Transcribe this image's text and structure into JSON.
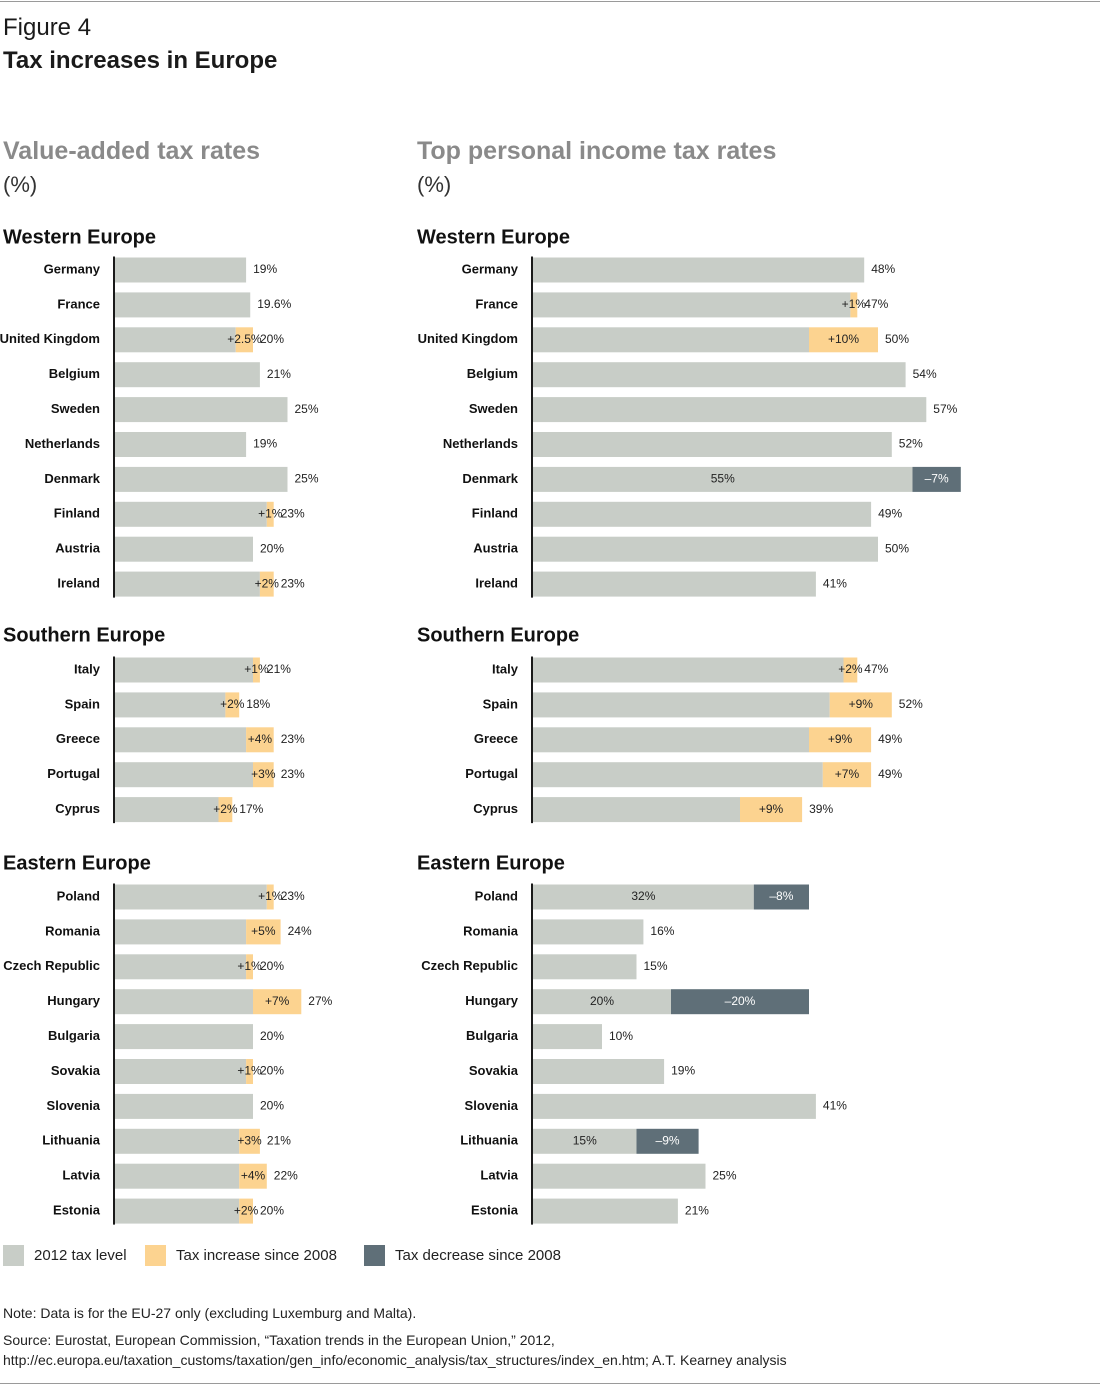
{
  "figure_label": "Figure 4",
  "figure_title": "Tax increases in Europe",
  "colors": {
    "level": "#c8cdc7",
    "increase": "#fcd390",
    "decrease": "#5f6f78",
    "axis": "#1a1a1a"
  },
  "legend": {
    "level": "2012 tax level",
    "increase": "Tax increase since 2008",
    "decrease": "Tax decrease since 2008"
  },
  "note": "Note: Data is for the EU-27 only (excluding Luxemburg and Malta).",
  "source_line1": "Source: Eurostat, European Commission, “Taxation trends in the European Union,” 2012,",
  "source_line2": "http://ec.europa.eu/taxation_customs/taxation/gen_info/economic_analysis/tax_structures/index_en.htm;  A.T. Kearney analysis",
  "chart_data": [
    {
      "type": "bar",
      "orientation": "horizontal",
      "stacked": true,
      "title": "Value-added tax rates",
      "unit": "(%)",
      "groups": [
        {
          "name": "Western Europe",
          "rows": [
            {
              "country": "Germany",
              "level": 19,
              "change": 0,
              "label": "19%",
              "change_label": ""
            },
            {
              "country": "France",
              "level": 19.6,
              "change": 0,
              "label": "19.6%",
              "change_label": ""
            },
            {
              "country": "United Kingdom",
              "level": 20,
              "change": 2.5,
              "label": "20%",
              "change_label": "+2.5%"
            },
            {
              "country": "Belgium",
              "level": 21,
              "change": 0,
              "label": "21%",
              "change_label": ""
            },
            {
              "country": "Sweden",
              "level": 25,
              "change": 0,
              "label": "25%",
              "change_label": ""
            },
            {
              "country": "Netherlands",
              "level": 19,
              "change": 0,
              "label": "19%",
              "change_label": ""
            },
            {
              "country": "Denmark",
              "level": 25,
              "change": 0,
              "label": "25%",
              "change_label": ""
            },
            {
              "country": "Finland",
              "level": 23,
              "change": 1,
              "label": "23%",
              "change_label": "+1%"
            },
            {
              "country": "Austria",
              "level": 20,
              "change": 0,
              "label": "20%",
              "change_label": ""
            },
            {
              "country": "Ireland",
              "level": 23,
              "change": 2,
              "label": "23%",
              "change_label": "+2%"
            }
          ]
        },
        {
          "name": "Southern Europe",
          "rows": [
            {
              "country": "Italy",
              "level": 21,
              "change": 1,
              "label": "21%",
              "change_label": "+1%"
            },
            {
              "country": "Spain",
              "level": 18,
              "change": 2,
              "label": "18%",
              "change_label": "+2%"
            },
            {
              "country": "Greece",
              "level": 23,
              "change": 4,
              "label": "23%",
              "change_label": "+4%"
            },
            {
              "country": "Portugal",
              "level": 23,
              "change": 3,
              "label": "23%",
              "change_label": "+3%"
            },
            {
              "country": "Cyprus",
              "level": 17,
              "change": 2,
              "label": "17%",
              "change_label": "+2%"
            }
          ]
        },
        {
          "name": "Eastern Europe",
          "rows": [
            {
              "country": "Poland",
              "level": 23,
              "change": 1,
              "label": "23%",
              "change_label": "+1%"
            },
            {
              "country": "Romania",
              "level": 24,
              "change": 5,
              "label": "24%",
              "change_label": "+5%"
            },
            {
              "country": "Czech Republic",
              "level": 20,
              "change": 1,
              "label": "20%",
              "change_label": "+1%"
            },
            {
              "country": "Hungary",
              "level": 27,
              "change": 7,
              "label": "27%",
              "change_label": "+7%"
            },
            {
              "country": "Bulgaria",
              "level": 20,
              "change": 0,
              "label": "20%",
              "change_label": ""
            },
            {
              "country": "Sovakia",
              "level": 20,
              "change": 1,
              "label": "20%",
              "change_label": "+1%"
            },
            {
              "country": "Slovenia",
              "level": 20,
              "change": 0,
              "label": "20%",
              "change_label": ""
            },
            {
              "country": "Lithuania",
              "level": 21,
              "change": 3,
              "label": "21%",
              "change_label": "+3%"
            },
            {
              "country": "Latvia",
              "level": 22,
              "change": 4,
              "label": "22%",
              "change_label": "+4%"
            },
            {
              "country": "Estonia",
              "level": 20,
              "change": 2,
              "label": "20%",
              "change_label": "+2%"
            }
          ]
        }
      ]
    },
    {
      "type": "bar",
      "orientation": "horizontal",
      "stacked": true,
      "title": "Top personal income tax rates",
      "unit": "(%)",
      "groups": [
        {
          "name": "Western Europe",
          "rows": [
            {
              "country": "Germany",
              "level": 48,
              "change": 0,
              "label": "48%",
              "change_label": ""
            },
            {
              "country": "France",
              "level": 47,
              "change": 1,
              "label": "47%",
              "change_label": "+1%"
            },
            {
              "country": "United Kingdom",
              "level": 50,
              "change": 10,
              "label": "50%",
              "change_label": "+10%"
            },
            {
              "country": "Belgium",
              "level": 54,
              "change": 0,
              "label": "54%",
              "change_label": ""
            },
            {
              "country": "Sweden",
              "level": 57,
              "change": 0,
              "label": "57%",
              "change_label": ""
            },
            {
              "country": "Netherlands",
              "level": 52,
              "change": 0,
              "label": "52%",
              "change_label": ""
            },
            {
              "country": "Denmark",
              "level": 55,
              "change": -7,
              "label": "55%",
              "change_label": "–7%"
            },
            {
              "country": "Finland",
              "level": 49,
              "change": 0,
              "label": "49%",
              "change_label": ""
            },
            {
              "country": "Austria",
              "level": 50,
              "change": 0,
              "label": "50%",
              "change_label": ""
            },
            {
              "country": "Ireland",
              "level": 41,
              "change": 0,
              "label": "41%",
              "change_label": ""
            }
          ]
        },
        {
          "name": "Southern Europe",
          "rows": [
            {
              "country": "Italy",
              "level": 47,
              "change": 2,
              "label": "47%",
              "change_label": "+2%"
            },
            {
              "country": "Spain",
              "level": 52,
              "change": 9,
              "label": "52%",
              "change_label": "+9%"
            },
            {
              "country": "Greece",
              "level": 49,
              "change": 9,
              "label": "49%",
              "change_label": "+9%"
            },
            {
              "country": "Portugal",
              "level": 49,
              "change": 7,
              "label": "49%",
              "change_label": "+7%"
            },
            {
              "country": "Cyprus",
              "level": 39,
              "change": 9,
              "label": "39%",
              "change_label": "+9%"
            }
          ]
        },
        {
          "name": "Eastern Europe",
          "rows": [
            {
              "country": "Poland",
              "level": 32,
              "change": -8,
              "label": "32%",
              "change_label": "–8%"
            },
            {
              "country": "Romania",
              "level": 16,
              "change": 0,
              "label": "16%",
              "change_label": ""
            },
            {
              "country": "Czech Republic",
              "level": 15,
              "change": 0,
              "label": "15%",
              "change_label": ""
            },
            {
              "country": "Hungary",
              "level": 20,
              "change": -20,
              "label": "20%",
              "change_label": "–20%"
            },
            {
              "country": "Bulgaria",
              "level": 10,
              "change": 0,
              "label": "10%",
              "change_label": ""
            },
            {
              "country": "Sovakia",
              "level": 19,
              "change": 0,
              "label": "19%",
              "change_label": ""
            },
            {
              "country": "Slovenia",
              "level": 41,
              "change": 0,
              "label": "41%",
              "change_label": ""
            },
            {
              "country": "Lithuania",
              "level": 15,
              "change": -9,
              "label": "15%",
              "change_label": "–9%"
            },
            {
              "country": "Latvia",
              "level": 25,
              "change": 0,
              "label": "25%",
              "change_label": ""
            },
            {
              "country": "Estonia",
              "level": 21,
              "change": 0,
              "label": "21%",
              "change_label": ""
            }
          ]
        }
      ]
    }
  ]
}
